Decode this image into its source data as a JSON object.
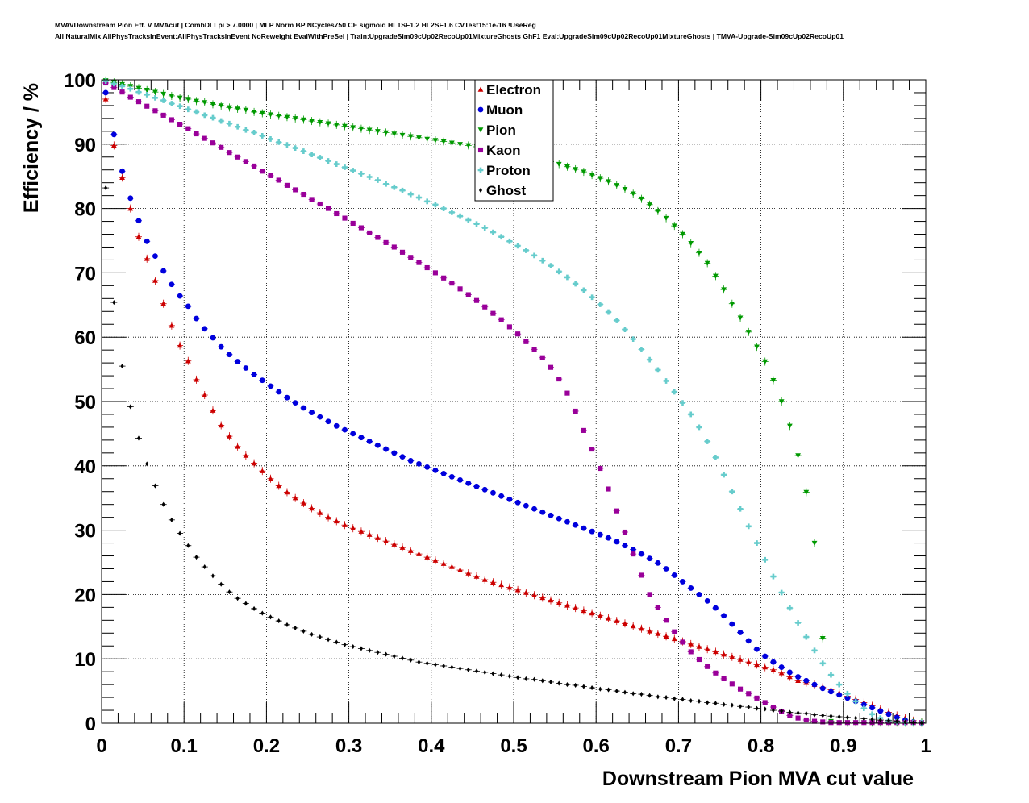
{
  "header": {
    "line1": "MVAVDownstream Pion Eff. V MVAcut | CombDLLpi > 7.0000 | MLP Norm BP NCycles750 CE sigmoid HL1SF1.2 HL2SF1.6 CVTest15:1e-16 !UseReg",
    "line2": "All NaturalMix AllPhysTracksInEvent:AllPhysTracksInEvent NoReweight EvalWithPreSel | Train:UpgradeSim09cUp02RecoUp01MixtureGhosts GhF1 Eval:UpgradeSim09cUp02RecoUp01MixtureGhosts | TMVA-Upgrade-Sim09cUp02RecoUp01"
  },
  "chart_data": {
    "type": "scatter",
    "title": "",
    "xlabel": "Downstream Pion MVA cut value",
    "ylabel": "Efficiency / %",
    "xlim": [
      0,
      1
    ],
    "ylim": [
      0,
      100
    ],
    "xticks": [
      "0",
      "0.1",
      "0.2",
      "0.3",
      "0.4",
      "0.5",
      "0.6",
      "0.7",
      "0.8",
      "0.9",
      "1"
    ],
    "yticks": [
      "0",
      "10",
      "20",
      "30",
      "40",
      "50",
      "60",
      "70",
      "80",
      "90",
      "100"
    ],
    "grid": true,
    "legend_position": "top-center",
    "x": [
      0.005,
      0.015,
      0.025,
      0.035,
      0.045,
      0.055,
      0.065,
      0.075,
      0.085,
      0.095,
      0.105,
      0.115,
      0.125,
      0.135,
      0.145,
      0.155,
      0.165,
      0.175,
      0.185,
      0.195,
      0.205,
      0.215,
      0.225,
      0.235,
      0.245,
      0.255,
      0.265,
      0.275,
      0.285,
      0.295,
      0.305,
      0.315,
      0.325,
      0.335,
      0.345,
      0.355,
      0.365,
      0.375,
      0.385,
      0.395,
      0.405,
      0.415,
      0.425,
      0.435,
      0.445,
      0.455,
      0.465,
      0.475,
      0.485,
      0.495,
      0.505,
      0.515,
      0.525,
      0.535,
      0.545,
      0.555,
      0.565,
      0.575,
      0.585,
      0.595,
      0.605,
      0.615,
      0.625,
      0.635,
      0.645,
      0.655,
      0.665,
      0.675,
      0.685,
      0.695,
      0.705,
      0.715,
      0.725,
      0.735,
      0.745,
      0.755,
      0.765,
      0.775,
      0.785,
      0.795,
      0.805,
      0.815,
      0.825,
      0.835,
      0.845,
      0.855,
      0.865,
      0.875,
      0.885,
      0.895,
      0.905,
      0.915,
      0.925,
      0.935,
      0.945,
      0.955,
      0.965,
      0.975,
      0.985,
      0.995
    ],
    "series": [
      {
        "name": "Electron",
        "marker": "triangle-up",
        "color": "#cc0000",
        "values": [
          97.0,
          89.8,
          84.8,
          80.0,
          75.6,
          72.2,
          68.8,
          65.2,
          61.8,
          58.7,
          56.3,
          53.4,
          51.0,
          48.6,
          46.3,
          44.6,
          43.0,
          41.6,
          40.4,
          39.2,
          38.0,
          36.9,
          35.9,
          35.0,
          34.2,
          33.4,
          32.7,
          32.0,
          31.4,
          30.8,
          30.3,
          29.8,
          29.3,
          28.8,
          28.3,
          27.8,
          27.3,
          26.8,
          26.3,
          25.8,
          25.3,
          24.8,
          24.3,
          23.8,
          23.3,
          22.8,
          22.3,
          21.9,
          21.5,
          21.1,
          20.7,
          20.3,
          19.9,
          19.5,
          19.1,
          18.7,
          18.3,
          17.9,
          17.5,
          17.1,
          16.7,
          16.3,
          15.9,
          15.5,
          15.1,
          14.7,
          14.3,
          13.9,
          13.5,
          13.1,
          12.7,
          12.3,
          11.9,
          11.5,
          11.1,
          10.7,
          10.3,
          9.9,
          9.5,
          9.1,
          8.7,
          8.3,
          7.8,
          7.2,
          6.6,
          6.3,
          6.0,
          5.6,
          5.2,
          4.7,
          4.2,
          3.7,
          3.2,
          2.7,
          2.2,
          1.7,
          1.2,
          0.8,
          0.4,
          0.1
        ]
      },
      {
        "name": "Muon",
        "marker": "circle",
        "color": "#0000dd",
        "values": [
          98.0,
          91.5,
          85.8,
          81.6,
          78.1,
          74.9,
          72.6,
          70.3,
          68.2,
          66.4,
          64.8,
          62.9,
          61.3,
          59.9,
          58.5,
          57.3,
          56.2,
          55.2,
          54.2,
          53.3,
          52.4,
          51.5,
          50.6,
          49.8,
          49.0,
          48.3,
          47.6,
          46.9,
          46.2,
          45.6,
          45.0,
          44.4,
          43.8,
          43.2,
          42.6,
          42.0,
          41.4,
          40.8,
          40.3,
          39.8,
          39.3,
          38.8,
          38.3,
          37.8,
          37.3,
          36.8,
          36.3,
          35.8,
          35.3,
          34.8,
          34.3,
          33.8,
          33.3,
          32.8,
          32.3,
          31.8,
          31.3,
          30.8,
          30.3,
          29.8,
          29.3,
          28.8,
          28.2,
          27.6,
          27.0,
          26.3,
          25.6,
          24.9,
          24.0,
          23.0,
          22.0,
          21.0,
          20.0,
          19.0,
          17.9,
          16.7,
          15.4,
          14.1,
          12.8,
          11.5,
          10.4,
          9.5,
          8.7,
          7.9,
          7.2,
          6.6,
          6.0,
          5.4,
          4.9,
          4.4,
          3.9,
          3.4,
          2.9,
          2.4,
          1.9,
          1.4,
          0.9,
          0.5,
          0.2,
          0.05
        ]
      },
      {
        "name": "Pion",
        "marker": "triangle-down",
        "color": "#009900",
        "values": [
          99.9,
          99.6,
          99.3,
          99.0,
          98.7,
          98.4,
          98.1,
          97.8,
          97.5,
          97.2,
          97.0,
          96.7,
          96.5,
          96.2,
          96.0,
          95.7,
          95.5,
          95.3,
          95.0,
          94.8,
          94.6,
          94.4,
          94.2,
          94.0,
          93.8,
          93.6,
          93.4,
          93.2,
          93.0,
          92.8,
          92.6,
          92.4,
          92.2,
          92.0,
          91.8,
          91.6,
          91.4,
          91.2,
          91.0,
          90.8,
          90.6,
          90.4,
          90.2,
          90.0,
          89.8,
          89.6,
          89.4,
          89.2,
          89.0,
          88.8,
          88.5,
          88.2,
          87.9,
          87.6,
          87.3,
          86.9,
          86.5,
          86.1,
          85.7,
          85.2,
          84.7,
          84.2,
          83.6,
          83.0,
          82.3,
          81.5,
          80.6,
          79.6,
          78.5,
          77.3,
          76.0,
          74.6,
          73.1,
          71.5,
          69.5,
          67.4,
          65.2,
          63.0,
          60.8,
          58.5,
          56.2,
          53.3,
          50.0,
          46.2,
          41.6,
          35.9,
          28.0,
          13.2,
          0.3,
          0.1,
          0.1,
          0.1,
          0.1,
          0.1,
          0.1,
          0.1,
          0.1,
          0.1,
          0.1,
          0.1
        ]
      },
      {
        "name": "Kaon",
        "marker": "square",
        "color": "#990099",
        "values": [
          99.5,
          98.8,
          98.1,
          97.3,
          96.6,
          95.9,
          95.2,
          94.5,
          93.8,
          93.1,
          92.4,
          91.6,
          90.9,
          90.2,
          89.5,
          88.7,
          88.0,
          87.3,
          86.6,
          85.8,
          85.1,
          84.4,
          83.6,
          82.9,
          82.2,
          81.4,
          80.7,
          80.0,
          79.2,
          78.5,
          77.7,
          77.0,
          76.2,
          75.5,
          74.7,
          74.0,
          73.2,
          72.4,
          71.6,
          70.8,
          70.0,
          69.2,
          68.4,
          67.5,
          66.6,
          65.7,
          64.7,
          63.7,
          62.7,
          61.6,
          60.5,
          59.3,
          58.1,
          56.8,
          55.3,
          53.5,
          51.3,
          48.5,
          45.5,
          42.6,
          39.6,
          36.4,
          33.0,
          29.7,
          26.3,
          23.0,
          20.0,
          18.0,
          16.0,
          14.2,
          12.6,
          11.1,
          9.9,
          8.8,
          7.8,
          6.9,
          6.1,
          5.3,
          4.6,
          3.9,
          3.2,
          2.5,
          1.8,
          1.2,
          0.8,
          0.5,
          0.3,
          0.2,
          0.1,
          0.1,
          0.1,
          0.1,
          0.1,
          0.1,
          0.1,
          0.1,
          0.1,
          0.1,
          0.1,
          0.1
        ]
      },
      {
        "name": "Proton",
        "marker": "cross",
        "color": "#66cccc",
        "values": [
          99.8,
          99.4,
          99.0,
          98.6,
          98.1,
          97.7,
          97.2,
          96.8,
          96.3,
          95.9,
          95.4,
          95.0,
          94.5,
          94.1,
          93.6,
          93.2,
          92.7,
          92.2,
          91.8,
          91.3,
          90.8,
          90.3,
          89.9,
          89.4,
          88.9,
          88.4,
          87.9,
          87.4,
          86.9,
          86.4,
          85.9,
          85.4,
          84.9,
          84.4,
          83.8,
          83.3,
          82.8,
          82.2,
          81.7,
          81.1,
          80.6,
          80.0,
          79.4,
          78.8,
          78.2,
          77.6,
          77.0,
          76.3,
          75.6,
          74.9,
          74.2,
          73.5,
          72.7,
          71.9,
          71.1,
          70.2,
          69.3,
          68.3,
          67.3,
          66.2,
          65.1,
          63.9,
          62.6,
          61.2,
          59.7,
          58.1,
          56.5,
          54.9,
          53.2,
          51.5,
          49.8,
          48.0,
          46.0,
          43.8,
          41.3,
          38.6,
          36.0,
          33.3,
          30.6,
          28.0,
          25.4,
          22.8,
          20.3,
          17.9,
          15.6,
          13.4,
          11.3,
          9.3,
          7.5,
          6.0,
          4.6,
          3.4,
          2.3,
          1.4,
          0.8,
          0.4,
          0.2,
          0.1,
          0.1,
          0.1
        ]
      },
      {
        "name": "Ghost",
        "marker": "diamond",
        "color": "#000000",
        "values": [
          83.2,
          65.4,
          55.5,
          49.2,
          44.3,
          40.3,
          36.9,
          34.0,
          31.6,
          29.5,
          27.6,
          25.8,
          24.3,
          22.9,
          21.6,
          20.4,
          19.4,
          18.6,
          17.8,
          17.1,
          16.5,
          15.9,
          15.3,
          14.8,
          14.3,
          13.8,
          13.4,
          13.0,
          12.6,
          12.2,
          11.9,
          11.6,
          11.3,
          11.0,
          10.7,
          10.4,
          10.1,
          9.8,
          9.5,
          9.3,
          9.1,
          8.9,
          8.7,
          8.5,
          8.3,
          8.1,
          7.9,
          7.7,
          7.5,
          7.3,
          7.1,
          6.9,
          6.8,
          6.6,
          6.4,
          6.2,
          6.0,
          5.9,
          5.7,
          5.5,
          5.3,
          5.2,
          5.0,
          4.8,
          4.6,
          4.5,
          4.3,
          4.1,
          4.0,
          3.8,
          3.7,
          3.5,
          3.4,
          3.2,
          3.1,
          2.9,
          2.8,
          2.6,
          2.5,
          2.3,
          2.2,
          2.0,
          1.9,
          1.7,
          1.6,
          1.5,
          1.3,
          1.2,
          1.1,
          1.0,
          0.9,
          0.8,
          0.7,
          0.6,
          0.5,
          0.4,
          0.3,
          0.2,
          0.1,
          0.05
        ]
      }
    ]
  }
}
